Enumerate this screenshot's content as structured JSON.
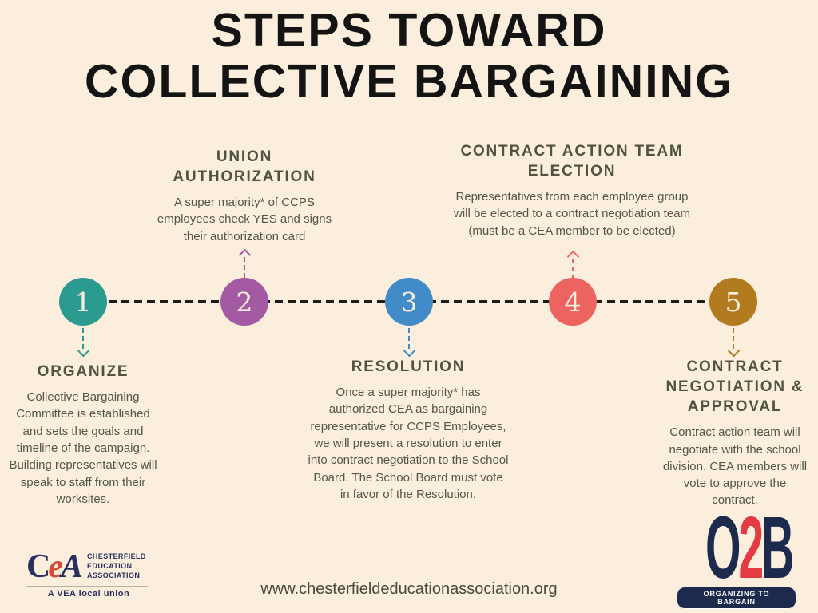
{
  "title": {
    "line1": "STEPS TOWARD",
    "line2": "COLLECTIVE BARGAINING"
  },
  "steps": [
    {
      "number": "1",
      "color": "#2b9b8f",
      "label_position": "below",
      "heading": "ORGANIZE",
      "body": "Collective Bargaining Committee is established and sets the goals and timeline of the campaign. Building representatives will speak to staff from their worksites."
    },
    {
      "number": "2",
      "color": "#a35aa3",
      "label_position": "above",
      "heading": "UNION AUTHORIZATION",
      "body": "A super majority* of CCPS employees check YES and signs their authorization card"
    },
    {
      "number": "3",
      "color": "#428bc9",
      "label_position": "below",
      "heading": "RESOLUTION",
      "body": "Once a super majority* has authorized CEA as bargaining representative for CCPS Employees, we will present a resolution to enter into contract negotiation to the School Board. The School Board must vote in favor of the Resolution."
    },
    {
      "number": "4",
      "color": "#ec6360",
      "label_position": "above",
      "heading": "CONTRACT ACTION TEAM ELECTION",
      "body": "Representatives from each employee group will be elected to a contract negotiation team (must be a CEA member to be elected)"
    },
    {
      "number": "5",
      "color": "#b27b20",
      "label_position": "below",
      "heading": "CONTRACT NEGOTIATION & APPROVAL",
      "body": "Contract action team will negotiate with the school division. CEA members will vote to approve the contract."
    }
  ],
  "footer": {
    "cea_logo": {
      "letter_c": "C",
      "letter_e": "e",
      "letter_a": "A",
      "org_line1": "CHESTERFIELD",
      "org_line2": "EDUCATION",
      "org_line3": "ASSOCIATION",
      "tagline": "A VEA local union"
    },
    "website": "www.chesterfieldeducationassociation.org",
    "o2b_logo": {
      "letter_o": "O",
      "digit_two": "2",
      "letter_b": "B",
      "tagline": "ORGANIZING TO BARGAIN"
    }
  },
  "colors": {
    "background": "#fbeedd",
    "title": "#141414",
    "heading": "#4f5340",
    "body": "#53564a",
    "timeline": "#1c1c1c",
    "number": "#f7eedd",
    "cea_navy": "#27305f",
    "cea_red": "#d84a31",
    "o2b_navy": "#1c2b4d",
    "o2b_red": "#e23b44"
  }
}
